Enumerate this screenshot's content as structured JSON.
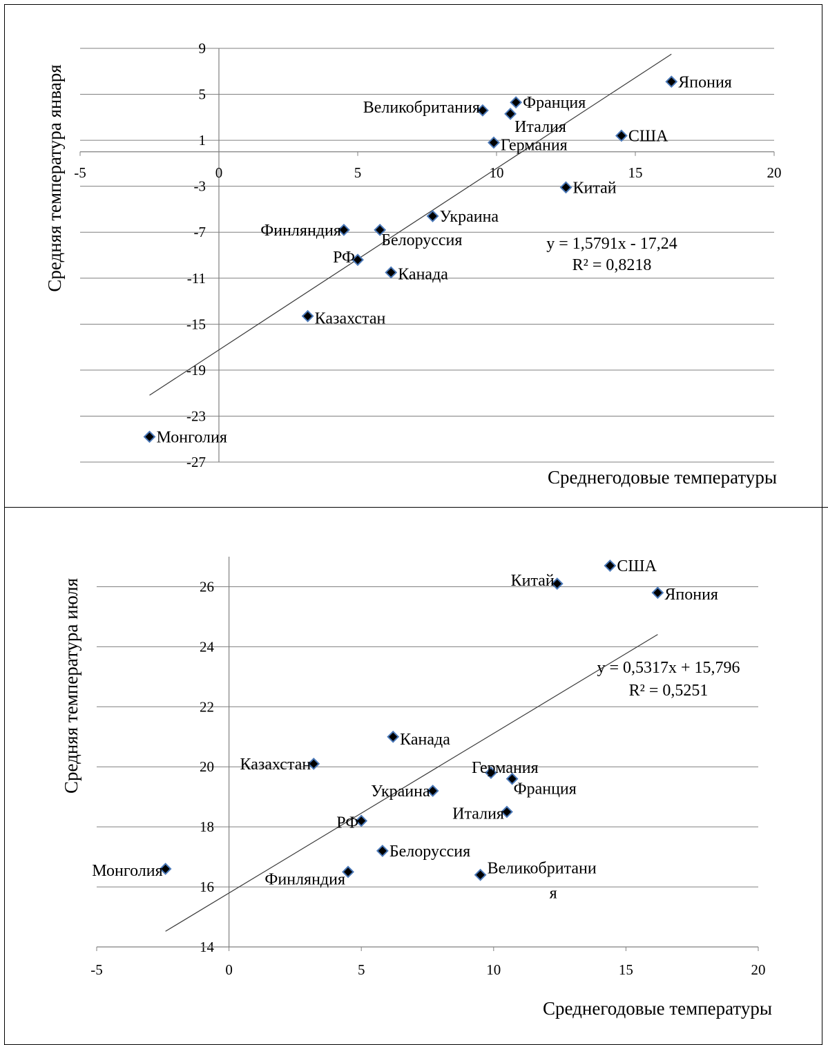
{
  "chart_data": [
    {
      "type": "scatter",
      "title": "",
      "xlabel": "Среднегодовые температуры",
      "ylabel": "Средняя температура января",
      "xlim": [
        -5,
        20
      ],
      "ylim": [
        -27,
        9
      ],
      "xticks": [
        "-5",
        "0",
        "5",
        "10",
        "15",
        "20"
      ],
      "yticks": [
        "9",
        "5",
        "1",
        "-3",
        "-7",
        "-11",
        "-15",
        "-19",
        "-23",
        "-27"
      ],
      "grid": "horizontal",
      "marker": "diamond",
      "points": [
        {
          "label": "Япония",
          "x": 16.3,
          "y": 6.1
        },
        {
          "label": "Франция",
          "x": 10.7,
          "y": 4.3
        },
        {
          "label": "Великобритания",
          "x": 9.5,
          "y": 3.6
        },
        {
          "label": "Италия",
          "x": 10.5,
          "y": 3.3
        },
        {
          "label": "США",
          "x": 14.5,
          "y": 1.4
        },
        {
          "label": "Германия",
          "x": 9.9,
          "y": 0.8
        },
        {
          "label": "Китай",
          "x": 12.5,
          "y": -3.1
        },
        {
          "label": "Украина",
          "x": 7.7,
          "y": -5.6
        },
        {
          "label": "Финляндия",
          "x": 4.5,
          "y": -6.8
        },
        {
          "label": "Белоруссия",
          "x": 5.8,
          "y": -6.8
        },
        {
          "label": "РФ",
          "x": 5.0,
          "y": -9.4
        },
        {
          "label": "Канада",
          "x": 6.2,
          "y": -10.5
        },
        {
          "label": "Казахстан",
          "x": 3.2,
          "y": -14.3
        },
        {
          "label": "Монголия",
          "x": -2.5,
          "y": -24.8
        }
      ],
      "trendline": {
        "slope": 1.5791,
        "intercept": -17.24,
        "x_range": [
          -2.5,
          16.3
        ]
      },
      "equation": "y = 1,5791x - 17,24",
      "r2": "R² = 0,8218"
    },
    {
      "type": "scatter",
      "title": "",
      "xlabel": "Среднегодовые температуры",
      "ylabel": "Средняя температура июля",
      "xlim": [
        -5,
        20
      ],
      "ylim": [
        14,
        27
      ],
      "xticks": [
        "-5",
        "0",
        "5",
        "10",
        "15",
        "20"
      ],
      "yticks": [
        "26",
        "24",
        "22",
        "20",
        "18",
        "16",
        "14"
      ],
      "grid": "horizontal",
      "marker": "diamond",
      "points": [
        {
          "label": "США",
          "x": 14.4,
          "y": 26.7
        },
        {
          "label": "Китай",
          "x": 12.4,
          "y": 26.1
        },
        {
          "label": "Япония",
          "x": 16.2,
          "y": 25.8
        },
        {
          "label": "Канада",
          "x": 6.2,
          "y": 21.0
        },
        {
          "label": "Казахстан",
          "x": 3.2,
          "y": 20.1
        },
        {
          "label": "Германия",
          "x": 9.9,
          "y": 19.8
        },
        {
          "label": "Франция",
          "x": 10.7,
          "y": 19.6
        },
        {
          "label": "Украина",
          "x": 7.7,
          "y": 19.2
        },
        {
          "label": "Италия",
          "x": 10.5,
          "y": 18.5
        },
        {
          "label": "РФ",
          "x": 5.0,
          "y": 18.2
        },
        {
          "label": "Белоруссия",
          "x": 5.8,
          "y": 17.2
        },
        {
          "label": "Монголия",
          "x": -2.4,
          "y": 16.6
        },
        {
          "label": "Финляндия",
          "x": 4.5,
          "y": 16.5
        },
        {
          "label": "Великобритания",
          "x": 9.5,
          "y": 16.4
        }
      ],
      "trendline": {
        "slope": 0.5317,
        "intercept": 15.796,
        "x_range": [
          -2.4,
          16.2
        ]
      },
      "equation": "y = 0,5317x + 15,796",
      "r2": "R² = 0,5251"
    }
  ]
}
